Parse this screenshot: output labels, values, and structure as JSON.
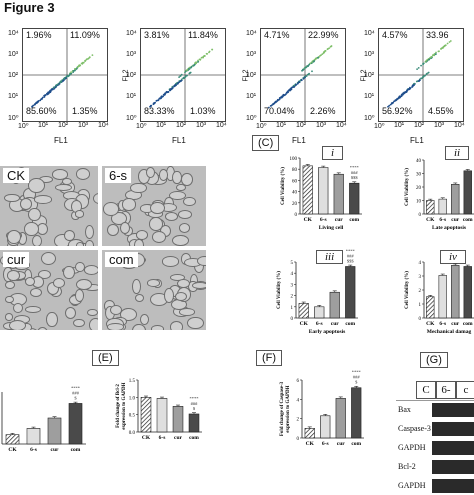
{
  "figure_title": "Figure 3",
  "flow_panels": [
    {
      "tl": "1.96%",
      "tr": "11.09%",
      "bl": "85.60%",
      "br": "1.35%",
      "ylabel": "",
      "xlabel": "FL1"
    },
    {
      "tl": "3.81%",
      "tr": "11.84%",
      "bl": "83.33%",
      "br": "1.03%",
      "ylabel": "FL2",
      "xlabel": "FL1"
    },
    {
      "tl": "4.71%",
      "tr": "22.99%",
      "bl": "70.04%",
      "br": "2.26%",
      "ylabel": "FL2",
      "xlabel": "FL1"
    },
    {
      "tl": "4.57%",
      "tr": "33.96",
      "bl": "56.92%",
      "br": "4.55%",
      "ylabel": "FL2",
      "xlabel": "FL1"
    }
  ],
  "flow_tick_labels": [
    "10⁰",
    "10¹",
    "10²",
    "10³",
    "10⁴"
  ],
  "micro_labels": [
    "CK",
    "6-s",
    "cur",
    "com"
  ],
  "panel_letters": {
    "c": "(C)",
    "e": "(E)",
    "f": "(F)",
    "g": "(G)"
  },
  "subpanel_labels": [
    "i",
    "ii",
    "iii",
    "iv"
  ],
  "categories": [
    "CK",
    "6-s",
    "cur",
    "com"
  ],
  "chart_data": [
    {
      "type": "bar",
      "id": "c-i",
      "ylabel": "Cell Viability (%)",
      "xlabel": "Living cell",
      "categories": [
        "CK",
        "6-s",
        "cur",
        "com"
      ],
      "values": [
        86,
        83,
        71,
        55
      ],
      "ylim": [
        0,
        100
      ],
      "yticks": [
        "0",
        "20",
        "40",
        "60",
        "80",
        "100"
      ],
      "annotation": "****\n###\n$$$"
    },
    {
      "type": "bar",
      "id": "c-ii",
      "ylabel": "Cell Viability (%)",
      "xlabel": "Late apoptosis",
      "categories": [
        "CK",
        "6-s",
        "cur",
        "com"
      ],
      "values": [
        10,
        11,
        22,
        32
      ],
      "ylim": [
        0,
        40
      ],
      "yticks": [
        "0",
        "10",
        "20",
        "30",
        "40"
      ]
    },
    {
      "type": "bar",
      "id": "c-iii",
      "ylabel": "Cell Viability (%)",
      "xlabel": "Early apoptosis",
      "categories": [
        "CK",
        "6-s",
        "cur",
        "com"
      ],
      "values": [
        1.3,
        1.0,
        2.3,
        4.6
      ],
      "ylim": [
        0,
        5
      ],
      "yticks": [
        "0",
        "1",
        "2",
        "3",
        "4",
        "5"
      ],
      "annotation": "****\n###\n$$$"
    },
    {
      "type": "bar",
      "id": "c-iv",
      "ylabel": "Cell Viability (%)",
      "xlabel": "Mechanical damag",
      "categories": [
        "CK",
        "6-s",
        "cur",
        "com"
      ],
      "values": [
        1.9,
        3.8,
        4.7,
        4.6
      ],
      "ylim": [
        0,
        5
      ],
      "yticks": [
        "0",
        "1",
        "2",
        "3",
        "4"
      ]
    },
    {
      "type": "bar",
      "id": "e-left",
      "ylabel": "",
      "xlabel": "",
      "categories": [
        "CK",
        "6-s",
        "cur",
        "com"
      ],
      "values": [
        0.45,
        0.75,
        1.25,
        1.95
      ],
      "ylim": [
        0,
        2.5
      ],
      "yticks": [],
      "annotation": "****\n###\n$"
    },
    {
      "type": "bar",
      "id": "e-right",
      "ylabel": "Fold change of Bcl-2 expression to GAPDH",
      "xlabel": "",
      "categories": [
        "CK",
        "6-s",
        "cur",
        "com"
      ],
      "values": [
        1.0,
        0.97,
        0.74,
        0.52
      ],
      "ylim": [
        0,
        1.5
      ],
      "yticks": [
        "0.0",
        "0.5",
        "1.0",
        "1.5"
      ],
      "annotation": "****\n###\n$"
    },
    {
      "type": "bar",
      "id": "f",
      "ylabel": "Fold change of Caspase-3 expression to GAPDH",
      "xlabel": "",
      "categories": [
        "CK",
        "6-s",
        "cur",
        "com"
      ],
      "values": [
        1.0,
        2.3,
        4.1,
        5.2
      ],
      "ylim": [
        0,
        6
      ],
      "yticks": [
        "0",
        "2",
        "4",
        "6"
      ],
      "annotation": "****\n###\n$"
    }
  ],
  "western_blot": {
    "lanes": [
      "C",
      "6-",
      "c"
    ],
    "rows": [
      "Bax",
      "Caspase-3",
      "GAPDH",
      "Bcl-2",
      "GAPDH"
    ]
  }
}
